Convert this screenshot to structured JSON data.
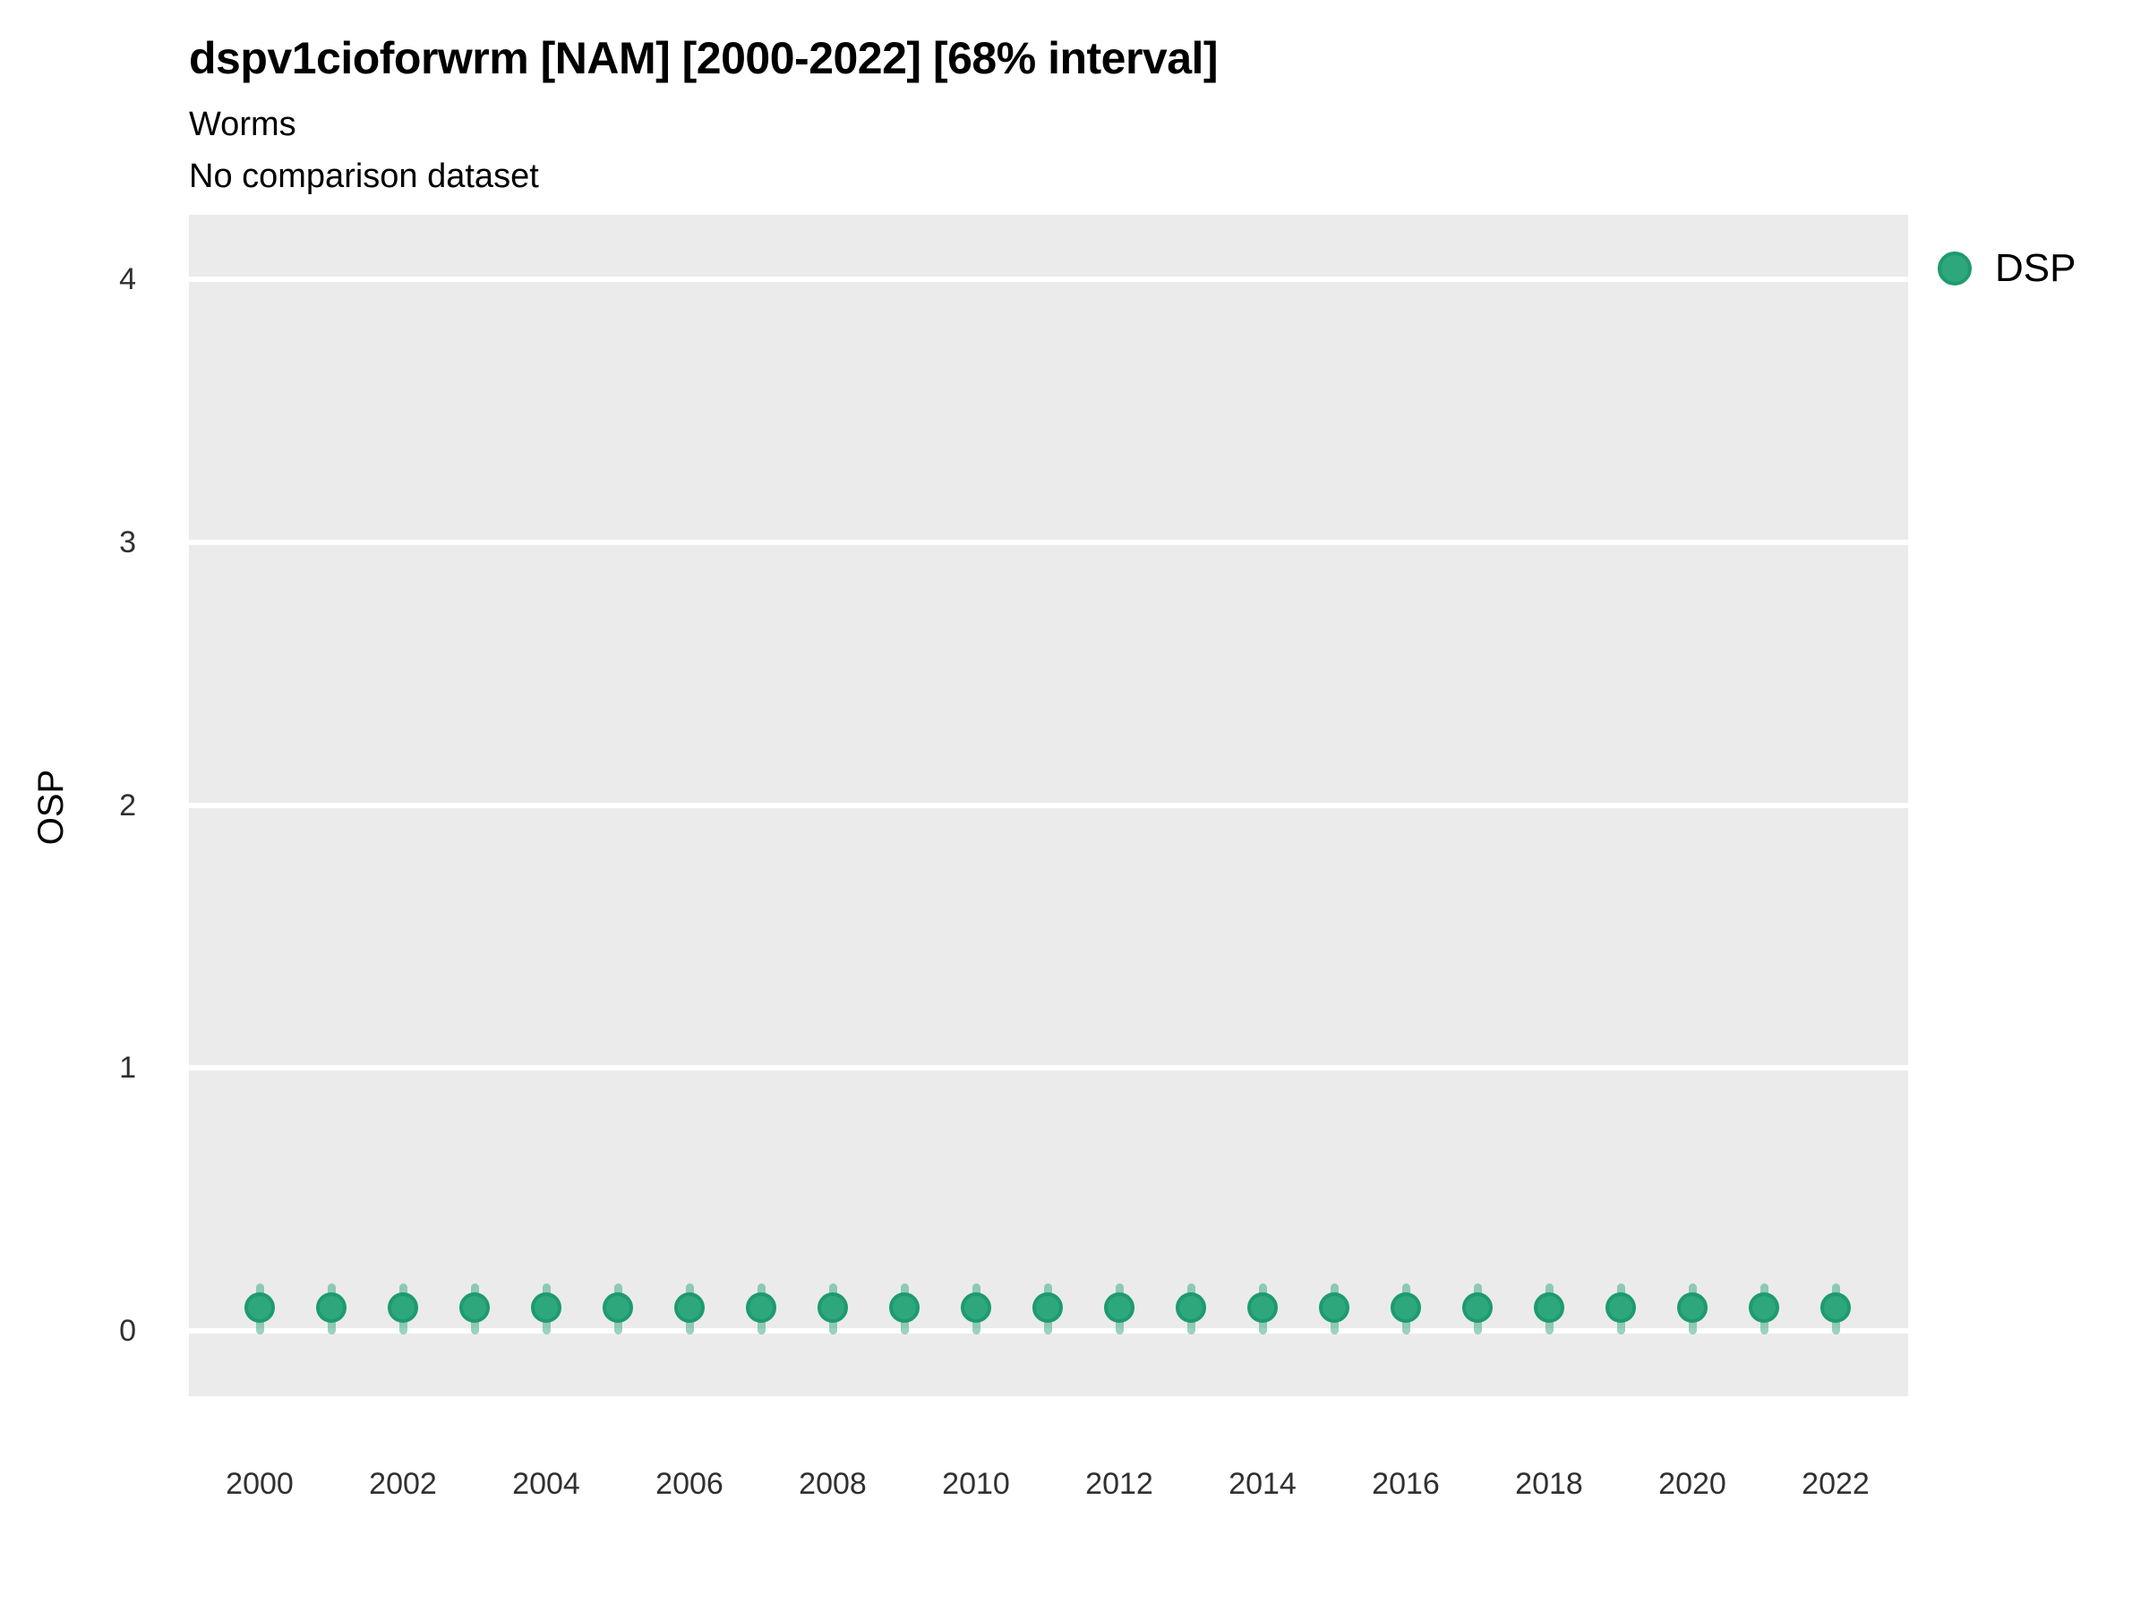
{
  "header": {
    "title": "dspv1cioforwrm [NAM] [2000-2022] [68% interval]",
    "subtitle": "Worms",
    "note": "No comparison dataset"
  },
  "axes": {
    "y_title": "OSP",
    "y_ticks": [
      0,
      1,
      2,
      3,
      4
    ],
    "x_ticks": [
      2000,
      2002,
      2004,
      2006,
      2008,
      2010,
      2012,
      2014,
      2016,
      2018,
      2020,
      2022
    ]
  },
  "legend": {
    "items": [
      {
        "label": "DSP",
        "swatch": "filled-circle"
      }
    ],
    "position": "right-top"
  },
  "colors": {
    "panel_bg": "#ebebeb",
    "gridline": "#ffffff",
    "point_fill": "#2fa77c",
    "point_stroke": "#1d9b6f",
    "error_bar": "rgba(47,167,124,0.5)",
    "text": "#000000",
    "tick_text": "#303030"
  },
  "chart_data": {
    "type": "scatter",
    "title": "dspv1cioforwrm [NAM] [2000-2022] [68% interval]",
    "subtitle": "Worms",
    "note": "No comparison dataset",
    "xlabel": "",
    "ylabel": "OSP",
    "xlim": [
      1999,
      2023
    ],
    "ylim": [
      -0.24,
      4.25
    ],
    "grid": "major-horizontal-only",
    "legend_position": "right-top",
    "interval_label": "68% interval",
    "series": [
      {
        "name": "DSP",
        "marker": "circle-with-vertical-interval",
        "x": [
          2000,
          2001,
          2002,
          2003,
          2004,
          2005,
          2006,
          2007,
          2008,
          2009,
          2010,
          2011,
          2012,
          2013,
          2014,
          2015,
          2016,
          2017,
          2018,
          2019,
          2020,
          2021,
          2022
        ],
        "y": [
          0.09,
          0.09,
          0.09,
          0.09,
          0.09,
          0.09,
          0.09,
          0.09,
          0.09,
          0.09,
          0.09,
          0.09,
          0.09,
          0.09,
          0.09,
          0.09,
          0.09,
          0.09,
          0.09,
          0.09,
          0.09,
          0.09,
          0.09
        ],
        "ymin": [
          0.0,
          0.0,
          0.0,
          0.0,
          0.0,
          0.0,
          0.0,
          0.0,
          0.0,
          0.0,
          0.0,
          0.0,
          0.0,
          0.0,
          0.0,
          0.0,
          0.0,
          0.0,
          0.0,
          0.0,
          0.0,
          0.0,
          0.0
        ],
        "ymax": [
          0.18,
          0.18,
          0.18,
          0.18,
          0.18,
          0.18,
          0.18,
          0.18,
          0.18,
          0.18,
          0.18,
          0.18,
          0.18,
          0.18,
          0.18,
          0.18,
          0.18,
          0.18,
          0.18,
          0.18,
          0.18,
          0.18,
          0.18
        ]
      }
    ]
  }
}
